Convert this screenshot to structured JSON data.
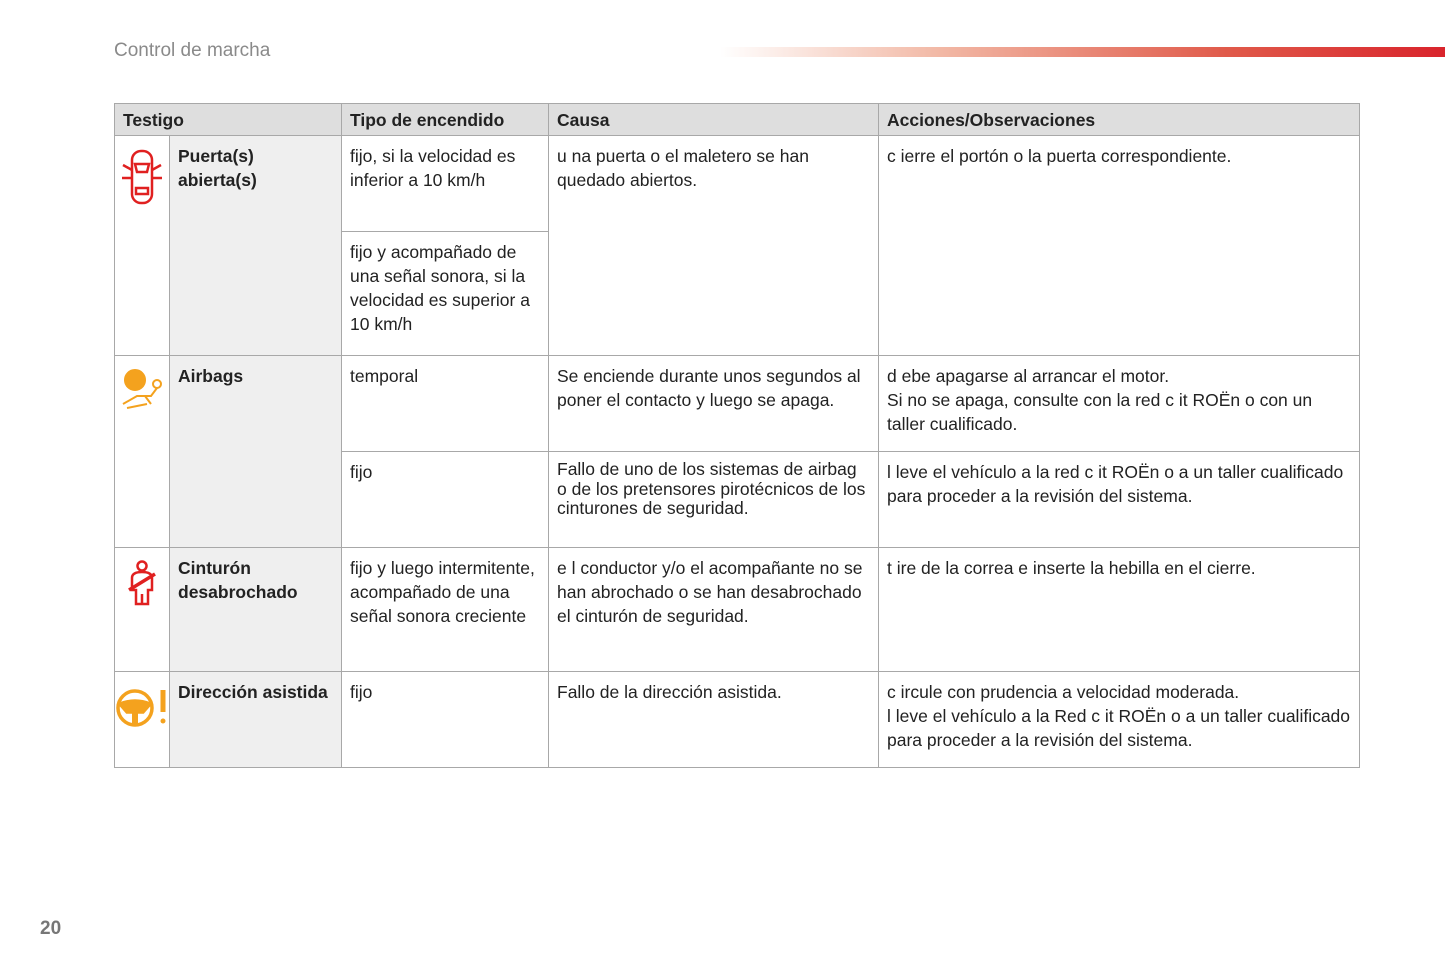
{
  "header": {
    "section": "Control de marcha",
    "page": "20"
  },
  "table": {
    "headers": [
      "Testigo",
      "Tipo de encendido",
      "Causa",
      "Acciones/Observaciones"
    ],
    "rows": [
      {
        "icon": "door-open-icon",
        "name": "Puerta(s) abierta(s)",
        "tipo1": "fijo, si la velocidad es inferior a 10 km/h",
        "tipo2": "fijo y acompañado de una señal sonora, si la velocidad es superior a 10 km/h",
        "causa": "u na puerta o el maletero se han quedado abiertos.",
        "accion": "c ierre el portón o la puerta correspondiente."
      },
      {
        "icon": "airbag-icon",
        "name": "Airbags",
        "tipo1": "temporal",
        "causa1": "Se enciende durante unos segundos al poner el contacto y luego se apaga.",
        "accion1a": "d ebe apagarse al arrancar el motor.",
        "accion1b": "Si no se apaga, consulte con la red c it ROËn  o con un taller cualificado.",
        "tipo2": "fijo",
        "causa2": "Fallo de uno de los sistemas de airbag o de los pretensores pirotécnicos de los cinturones de seguridad.",
        "accion2": "l leve el vehículo a la red c it ROËn  o a un taller cualificado para proceder a la revisión del sistema."
      },
      {
        "icon": "seatbelt-icon",
        "name": "Cinturón desabrochado",
        "tipo": "fijo y luego intermitente, acompañado de una señal sonora creciente",
        "causa": "e l conductor y/o el acompañante no se han abrochado o se han desabrochado el cinturón de seguridad.",
        "accion": "t ire de la correa e inserte la hebilla en el cierre."
      },
      {
        "icon": "power-steering-icon",
        "name": "Dirección asistida",
        "tipo": "fijo",
        "causa": "Fallo de la dirección asistida.",
        "accion1": "c ircule con prudencia a velocidad moderada.",
        "accion2": "l leve el vehículo a la Red c it ROËn  o a un taller cualificado para proceder a la revisión del sistema."
      }
    ]
  },
  "colors": {
    "red": "#e02020",
    "orange": "#f4a21e"
  }
}
